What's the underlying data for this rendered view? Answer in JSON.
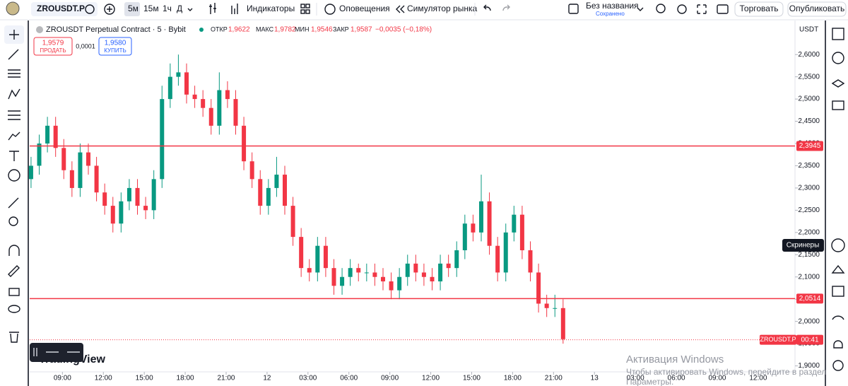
{
  "toolbar": {
    "symbol": "ZROUSDT.P",
    "intervals": [
      "5м",
      "15м",
      "1ч",
      "Д"
    ],
    "indicators": "Индикаторы",
    "alerts": "Оповещения",
    "replay": "Симулятор рынка",
    "layout_name": "Без названия",
    "layout_status": "Сохранено",
    "trade": "Торговать",
    "publish": "Опубликовать"
  },
  "legend": {
    "title": "ZROUSDT Perpetual Contract · 5 · Bybit",
    "open_label": "ОТКР",
    "open": "1,9622",
    "high_label": "МАКС",
    "high": "1,9782",
    "low_label": "МИН",
    "low": "1,9546",
    "close_label": "ЗАКР",
    "close": "1,9587",
    "change": "−0,0035 (−0,18%)",
    "sell_price": "1,9579",
    "sell": "ПРОДАТЬ",
    "spread": "0,0001",
    "buy_price": "1,9580",
    "buy": "КУПИТЬ",
    "currency": "USDT"
  },
  "chart_data": {
    "type": "candlestick",
    "up_color": "#089981",
    "down_color": "#f23645",
    "x": [
      0.7,
      1.3,
      1.9,
      2.5,
      3.1,
      3.7,
      4.3,
      4.9,
      5.5,
      6.1,
      6.7,
      7.3,
      7.9,
      8.5,
      9.1,
      9.7,
      10.3,
      10.9,
      11.5,
      12.1,
      12.7,
      13.3,
      13.9,
      14.5,
      15.1,
      15.7,
      16.3,
      16.9,
      17.5,
      18.1,
      18.7,
      19.3,
      19.9,
      20.5,
      21.1,
      21.7,
      22.3,
      22.9,
      23.5,
      24.1,
      24.7,
      25.3,
      25.9,
      26.5,
      27.1,
      27.7,
      28.3,
      28.9,
      29.5,
      30.1,
      30.7,
      31.3,
      31.9,
      32.5,
      33.1,
      33.7,
      34.3,
      34.9,
      35.5,
      36.1,
      36.7,
      37.3,
      37.9,
      38.5,
      39.1,
      39.7
    ],
    "open": [
      2.32,
      2.35,
      2.4,
      2.44,
      2.39,
      2.34,
      2.3,
      2.38,
      2.35,
      2.29,
      2.26,
      2.22,
      2.27,
      2.3,
      2.26,
      2.25,
      2.32,
      2.5,
      2.55,
      2.56,
      2.51,
      2.5,
      2.48,
      2.44,
      2.52,
      2.5,
      2.44,
      2.36,
      2.32,
      2.26,
      2.3,
      2.33,
      2.26,
      2.19,
      2.12,
      2.11,
      2.17,
      2.12,
      2.08,
      2.1,
      2.12,
      2.11,
      2.11,
      2.1,
      2.09,
      2.07,
      2.1,
      2.13,
      2.11,
      2.1,
      2.09,
      2.13,
      2.12,
      2.16,
      2.22,
      2.2,
      2.27,
      2.17,
      2.11,
      2.2,
      2.24,
      2.16,
      2.11,
      2.04,
      2.03,
      2.03
    ],
    "high": [
      2.37,
      2.42,
      2.46,
      2.46,
      2.41,
      2.36,
      2.4,
      2.4,
      2.37,
      2.31,
      2.28,
      2.29,
      2.32,
      2.32,
      2.28,
      2.34,
      2.53,
      2.58,
      2.6,
      2.58,
      2.53,
      2.52,
      2.5,
      2.56,
      2.54,
      2.52,
      2.46,
      2.38,
      2.34,
      2.32,
      2.37,
      2.35,
      2.28,
      2.21,
      2.14,
      2.19,
      2.19,
      2.14,
      2.12,
      2.14,
      2.13,
      2.13,
      2.13,
      2.12,
      2.11,
      2.12,
      2.15,
      2.15,
      2.13,
      2.12,
      2.15,
      2.15,
      2.18,
      2.24,
      2.24,
      2.33,
      2.29,
      2.19,
      2.22,
      2.26,
      2.26,
      2.18,
      2.13,
      2.06,
      2.06,
      2.05
    ],
    "low": [
      2.3,
      2.33,
      2.38,
      2.37,
      2.32,
      2.28,
      2.28,
      2.33,
      2.27,
      2.24,
      2.2,
      2.2,
      2.25,
      2.24,
      2.23,
      2.23,
      2.3,
      2.48,
      2.53,
      2.49,
      2.48,
      2.46,
      2.42,
      2.42,
      2.48,
      2.42,
      2.34,
      2.3,
      2.24,
      2.24,
      2.28,
      2.24,
      2.17,
      2.1,
      2.09,
      2.09,
      2.1,
      2.06,
      2.06,
      2.08,
      2.09,
      2.09,
      2.08,
      2.07,
      2.05,
      2.05,
      2.08,
      2.09,
      2.08,
      2.07,
      2.07,
      2.1,
      2.1,
      2.14,
      2.18,
      2.18,
      2.15,
      2.09,
      2.09,
      2.18,
      2.14,
      2.09,
      2.02,
      2.01,
      2.01,
      1.95
    ],
    "close": [
      2.35,
      2.4,
      2.44,
      2.39,
      2.34,
      2.3,
      2.38,
      2.35,
      2.29,
      2.26,
      2.22,
      2.27,
      2.3,
      2.26,
      2.25,
      2.32,
      2.5,
      2.55,
      2.56,
      2.51,
      2.5,
      2.48,
      2.44,
      2.52,
      2.5,
      2.44,
      2.36,
      2.32,
      2.26,
      2.3,
      2.33,
      2.26,
      2.19,
      2.12,
      2.11,
      2.17,
      2.12,
      2.08,
      2.1,
      2.12,
      2.11,
      2.11,
      2.1,
      2.09,
      2.07,
      2.1,
      2.13,
      2.11,
      2.1,
      2.09,
      2.13,
      2.12,
      2.16,
      2.22,
      2.2,
      2.27,
      2.17,
      2.11,
      2.2,
      2.24,
      2.16,
      2.11,
      2.04,
      2.03,
      2.03,
      1.96
    ],
    "xlim": [
      0.6,
      56.7
    ],
    "xticks": [
      {
        "value": 3,
        "label": "09:00"
      },
      {
        "value": 6,
        "label": "12:00"
      },
      {
        "value": 9,
        "label": "15:00"
      },
      {
        "value": 12,
        "label": "18:00"
      },
      {
        "value": 15,
        "label": "21:00"
      },
      {
        "value": 18,
        "label": "12"
      },
      {
        "value": 21,
        "label": "03:00"
      },
      {
        "value": 24,
        "label": "06:00"
      },
      {
        "value": 27,
        "label": "09:00"
      },
      {
        "value": 30,
        "label": "12:00"
      },
      {
        "value": 33,
        "label": "15:00"
      },
      {
        "value": 36,
        "label": "18:00"
      },
      {
        "value": 39,
        "label": "21:00"
      },
      {
        "value": 42,
        "label": "13"
      },
      {
        "value": 45,
        "label": "03:00"
      },
      {
        "value": 48,
        "label": "06:00"
      },
      {
        "value": 51,
        "label": "09:00"
      },
      {
        "value": 54,
        "label": "12:00"
      }
    ],
    "ylim": [
      1.885,
      2.675
    ],
    "yticks": [
      {
        "value": 1.9,
        "label": "1,9000"
      },
      {
        "value": 1.95,
        "label": "1,9500"
      },
      {
        "value": 2.0,
        "label": "2,0000"
      },
      {
        "value": 2.05,
        "label": "2,0500"
      },
      {
        "value": 2.1,
        "label": "2,1000"
      },
      {
        "value": 2.15,
        "label": "2,1500"
      },
      {
        "value": 2.2,
        "label": "2,2000"
      },
      {
        "value": 2.25,
        "label": "2,2500"
      },
      {
        "value": 2.3,
        "label": "2,3000"
      },
      {
        "value": 2.35,
        "label": "2,3500"
      },
      {
        "value": 2.4,
        "label": "2,4000"
      },
      {
        "value": 2.45,
        "label": "2,4500"
      },
      {
        "value": 2.5,
        "label": "2,5000"
      },
      {
        "value": 2.55,
        "label": "2,5500"
      },
      {
        "value": 2.6,
        "label": "2,6000"
      }
    ],
    "grid": false,
    "lines": {
      "values": [
        2.3945,
        2.0514
      ],
      "value_labels": [
        "2,3945",
        "2,0514"
      ],
      "color": "#f23645"
    },
    "last_price": {
      "value": 1.9587,
      "symbol": "ZROUSDT.P",
      "countdown": "00:41"
    }
  },
  "overlay": {
    "tooltip": "Скринеры",
    "logo": "TradingView",
    "watermark_title": "Активация Windows",
    "watermark_text": "Чтобы активировать Windows, перейдите в раздел",
    "watermark_link": "Параметры."
  }
}
